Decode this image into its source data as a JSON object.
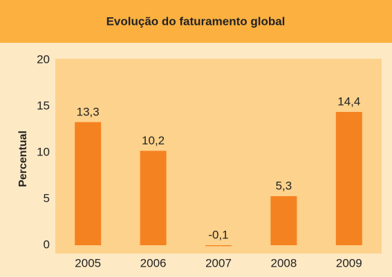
{
  "chart_data": {
    "type": "bar",
    "title": "Evolução do faturamento global",
    "y_label": "Percentual",
    "categories": [
      "2005",
      "2006",
      "2007",
      "2008",
      "2009"
    ],
    "values": [
      13.3,
      10.2,
      -0.1,
      5.3,
      14.4
    ],
    "value_labels": [
      "13,3",
      "10,2",
      "-0,1",
      "5,3",
      "14,4"
    ],
    "color": "#f58220",
    "ylim": [
      0,
      20
    ],
    "yticks": [
      0,
      5,
      10,
      15,
      20
    ],
    "grid": false
  }
}
